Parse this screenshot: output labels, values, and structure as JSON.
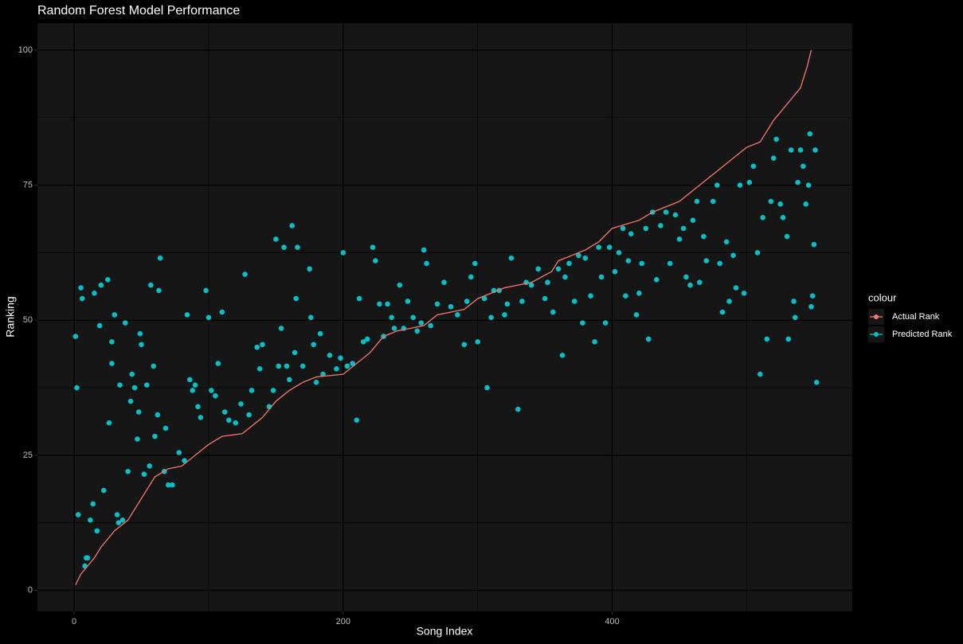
{
  "chart_data": {
    "type": "line",
    "title": "Random Forest Model Performance",
    "x_label": "Song Index",
    "y_label": "Ranking",
    "legend_title": "colour",
    "legend_position": "right",
    "xlim": [
      -27.3,
      578.5
    ],
    "ylim": [
      -3.9,
      105
    ],
    "xticks": [
      0,
      200,
      400
    ],
    "yticks": [
      0,
      25,
      50,
      75,
      100
    ],
    "x_minor_grid": [
      100,
      300,
      500
    ],
    "y_minor_grid": [
      12.5,
      37.5,
      62.5,
      87.5
    ],
    "grid": true,
    "series": [
      {
        "name": "Actual Rank",
        "color": "#F8766D",
        "type": "line",
        "x": [
          1,
          5,
          10,
          15,
          20,
          30,
          40,
          50,
          60,
          70,
          80,
          90,
          100,
          110,
          125,
          140,
          150,
          160,
          170,
          180,
          200,
          210,
          220,
          230,
          240,
          260,
          270,
          290,
          300,
          320,
          340,
          355,
          360,
          370,
          380,
          390,
          400,
          420,
          430,
          440,
          450,
          460,
          470,
          480,
          490,
          500,
          510,
          520,
          530,
          540,
          545,
          548
        ],
        "values": [
          1,
          3,
          4.5,
          6,
          8,
          11,
          13,
          17,
          21,
          22.5,
          23,
          25,
          27,
          28.5,
          29,
          32,
          35,
          37,
          38.5,
          39.5,
          40,
          42,
          44,
          47,
          48,
          49,
          51,
          52,
          54,
          56,
          57,
          59,
          61,
          62,
          63,
          64.5,
          67,
          68.5,
          70,
          71,
          72,
          74,
          76,
          78,
          80,
          82,
          83,
          87,
          90,
          93,
          97,
          100
        ]
      },
      {
        "name": "Predicted Rank",
        "color": "#00BFC4",
        "type": "scatter",
        "x": [
          1,
          2,
          3,
          5,
          6,
          8,
          9,
          10,
          12,
          14,
          15,
          17,
          19,
          20,
          22,
          25,
          26,
          28,
          28,
          30,
          32,
          33,
          34,
          36,
          38,
          40,
          42,
          43,
          45,
          47,
          48,
          49,
          50,
          52,
          54,
          56,
          57,
          59,
          60,
          62,
          63,
          64,
          67,
          68,
          70,
          73,
          78,
          82,
          84,
          86,
          88,
          90,
          92,
          94,
          98,
          100,
          102,
          105,
          107,
          110,
          112,
          115,
          120,
          124,
          127,
          130,
          132,
          136,
          138,
          140,
          145,
          148,
          150,
          152,
          154,
          156,
          158,
          160,
          162,
          164,
          165,
          166,
          170,
          175,
          176,
          178,
          180,
          183,
          185,
          190,
          195,
          198,
          200,
          203,
          207,
          210,
          212,
          215,
          218,
          222,
          224,
          227,
          230,
          233,
          236,
          238,
          242,
          245,
          248,
          252,
          255,
          258,
          260,
          262,
          265,
          270,
          275,
          280,
          285,
          290,
          292,
          295,
          298,
          300,
          305,
          307,
          310,
          312,
          316,
          320,
          322,
          325,
          330,
          333,
          336,
          340,
          345,
          350,
          352,
          356,
          360,
          363,
          365,
          368,
          372,
          375,
          378,
          380,
          384,
          387,
          390,
          392,
          395,
          398,
          402,
          405,
          408,
          410,
          412,
          414,
          418,
          420,
          422,
          425,
          427,
          430,
          433,
          436,
          440,
          443,
          447,
          450,
          453,
          455,
          458,
          460,
          463,
          465,
          468,
          470,
          475,
          478,
          480,
          482,
          485,
          487,
          490,
          492,
          495,
          498,
          502,
          505,
          508,
          510,
          512,
          515,
          518,
          520,
          522,
          525,
          527,
          530,
          531,
          533,
          535,
          536,
          538,
          540,
          542,
          544,
          546,
          547,
          548,
          549,
          550,
          551,
          552
        ],
        "values": [
          47,
          37.5,
          14,
          56,
          54,
          4.5,
          6,
          6,
          13,
          16,
          55,
          11,
          49,
          56.5,
          18.5,
          57.5,
          31,
          46,
          42,
          51,
          14,
          12.5,
          38,
          13,
          49.5,
          22,
          35,
          40,
          37.5,
          28,
          33,
          47.5,
          45.5,
          21.5,
          38,
          23,
          56.5,
          41.5,
          28.5,
          32.5,
          55.5,
          61.5,
          22,
          30,
          19.5,
          19.5,
          25.5,
          24,
          51,
          39,
          37,
          38,
          34,
          32,
          55.5,
          50.5,
          37,
          36,
          42,
          51.5,
          33,
          31.5,
          31,
          34.5,
          58.5,
          32.5,
          37,
          45,
          41,
          45.5,
          34,
          37,
          65,
          41.5,
          48.5,
          63.5,
          41.5,
          39,
          67.5,
          44,
          54,
          63.5,
          41.5,
          59.5,
          50.5,
          45.5,
          38.5,
          47.5,
          40,
          43.5,
          41,
          43,
          62.5,
          41.5,
          42,
          31.5,
          54,
          46,
          46.5,
          63.5,
          61,
          53,
          47,
          53,
          50.5,
          48.5,
          56.5,
          48.5,
          53.5,
          50.5,
          48,
          49.5,
          63,
          60.5,
          49,
          53,
          57,
          52.5,
          51,
          45.5,
          53.5,
          58,
          60.5,
          46,
          54,
          37.5,
          50.5,
          55.5,
          55.5,
          51,
          53,
          61.5,
          33.5,
          53.5,
          57,
          56.5,
          59.5,
          54,
          57,
          51.5,
          59.5,
          43.5,
          58,
          60.5,
          53.5,
          62,
          49.5,
          61.5,
          54.5,
          46,
          63.5,
          58,
          49.5,
          63.5,
          59,
          62.5,
          67,
          54.5,
          61,
          66,
          51,
          55,
          60.5,
          67,
          46.5,
          70,
          57.5,
          67.5,
          70,
          60.5,
          69.5,
          65,
          67,
          58,
          56.5,
          68.5,
          72,
          57,
          65.5,
          61,
          72,
          75,
          60.5,
          51.5,
          64.5,
          53.5,
          62,
          56,
          75,
          55,
          75.5,
          78.5,
          62.5,
          40,
          69,
          46.5,
          72,
          80,
          83.5,
          71.5,
          69,
          65.5,
          46.5,
          81.5,
          53.5,
          50.5,
          75.5,
          81.5,
          78.5,
          71.5,
          75,
          84.5,
          52.5,
          54.5,
          64,
          81.5,
          38.5
        ]
      }
    ]
  }
}
